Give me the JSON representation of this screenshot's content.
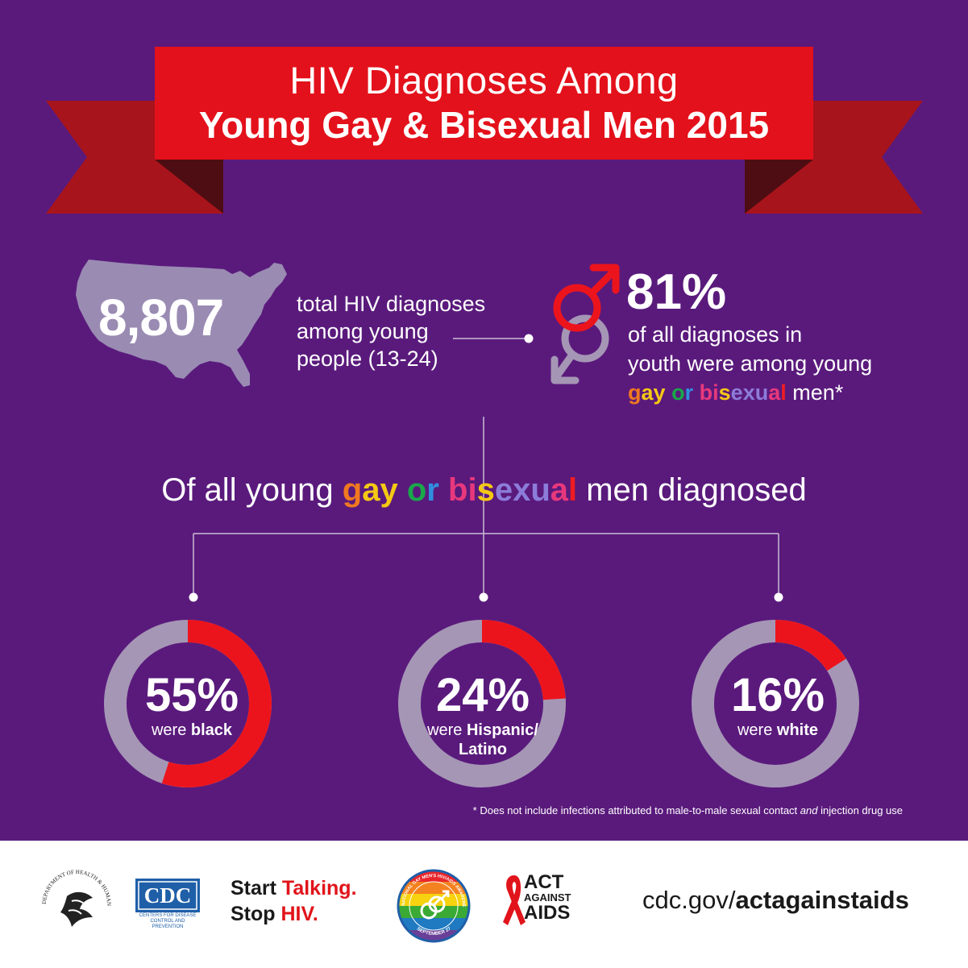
{
  "header": {
    "title_line1": "HIV Diagnoses Among",
    "title_line2": "Young Gay & Bisexual Men 2015"
  },
  "stats": {
    "total_number": "8,807",
    "total_desc_line1": "total HIV diagnoses",
    "total_desc_line2": "among young",
    "total_desc_line3": "people (13-24)",
    "pct_gay_bi": "81%",
    "pct_desc_line1": "of all diagnoses in",
    "pct_desc_line2": "youth were among young",
    "pct_desc_rainbow": [
      "g",
      "a",
      "y",
      " ",
      "o",
      "r",
      " ",
      "b",
      "i",
      "s",
      "e",
      "x",
      "u",
      "a",
      "l"
    ],
    "pct_desc_end": " men*"
  },
  "subheading": {
    "prefix": "Of all young ",
    "rainbow": [
      "g",
      "a",
      "y",
      " ",
      "o",
      "r",
      " ",
      "b",
      "i",
      "s",
      "e",
      "x",
      "u",
      "a",
      "l"
    ],
    "suffix": " men diagnosed"
  },
  "breakdown": [
    {
      "pct": "55%",
      "value": 55,
      "prefix": "were ",
      "group": "black",
      "group2": ""
    },
    {
      "pct": "24%",
      "value": 24,
      "prefix": "were ",
      "group": "Hispanic/",
      "group2": "Latino"
    },
    {
      "pct": "16%",
      "value": 16,
      "prefix": "were ",
      "group": "white",
      "group2": ""
    }
  ],
  "footnote": {
    "part1": "* Does not include infections attributed to male-to-male sexual contact ",
    "italic": "and",
    "part2": " injection drug use"
  },
  "footer": {
    "start": "Start ",
    "talking": "Talking.",
    "stop": "Stop ",
    "hiv": "HIV.",
    "url_prefix": "cdc.gov/",
    "url_bold": "actagainstaids",
    "cdc_logo": "CDC",
    "cdc_sub": "CENTERS FOR DISEASE CONTROL AND PREVENTION",
    "act_line1": "ACT",
    "act_line2": "AGAINST",
    "act_line3": "AIDS",
    "hhs_seal_text": "DEPARTMENT OF HEALTH & HUMAN SERVICES • USA",
    "nghaad_text": "NATIONAL GAY MEN'S HIV/AIDS AWARENESS DAY",
    "nghaad_date": "SEPTEMBER 27"
  },
  "colors": {
    "background": "#5a1a7c",
    "banner_red": "#e3111b",
    "ribbon_red": "#a8141b",
    "ribbon_dark": "#4e0d12",
    "ring_gray": "#a596b5",
    "ring_red": "#ec141c"
  }
}
